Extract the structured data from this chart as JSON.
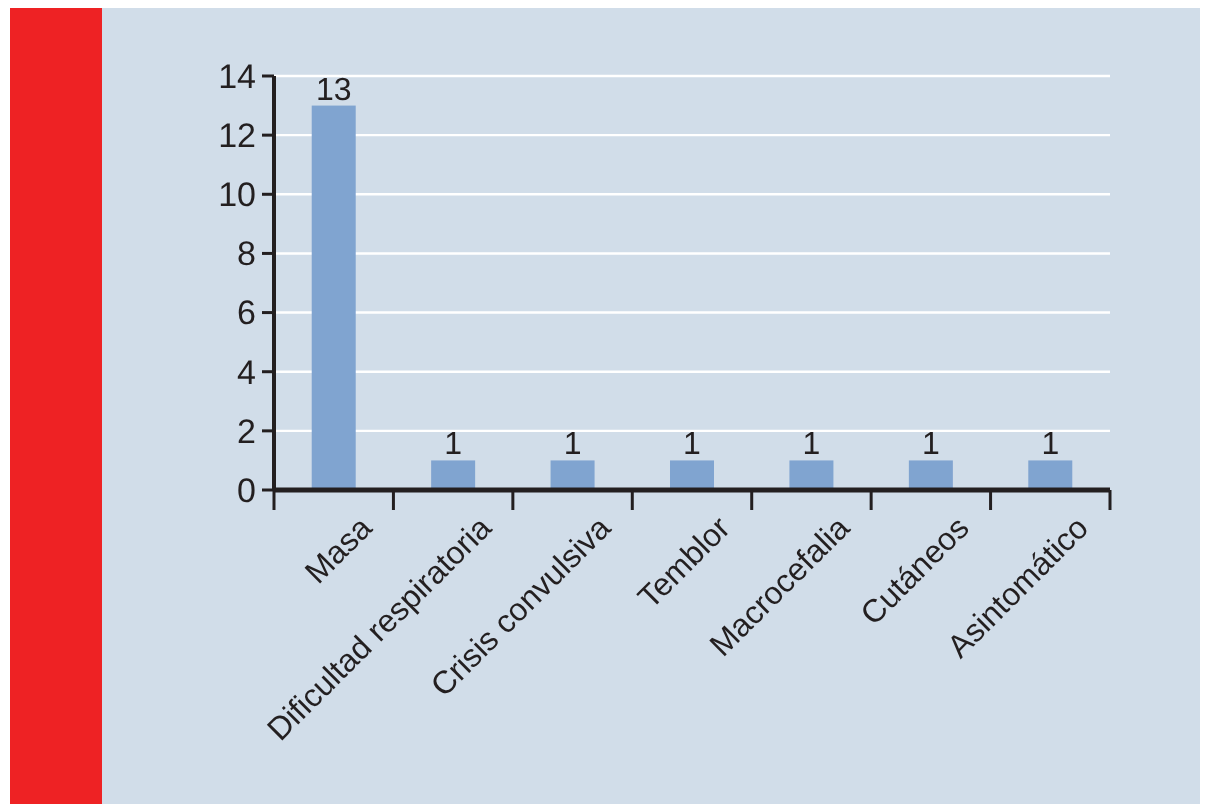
{
  "chart_data": {
    "type": "bar",
    "categories": [
      "Masa",
      "Dificultad respiratoria",
      "Crisis convulsiva",
      "Temblor",
      "Macrocefalia",
      "Cutáneos",
      "Asintomático"
    ],
    "values": [
      13,
      1,
      1,
      1,
      1,
      1,
      1
    ],
    "color": "#80a4d0",
    "ylim": [
      0,
      14
    ],
    "yticks": [
      0,
      2,
      4,
      6,
      8,
      10,
      12,
      14
    ],
    "grid": "y",
    "data_labels": true
  }
}
